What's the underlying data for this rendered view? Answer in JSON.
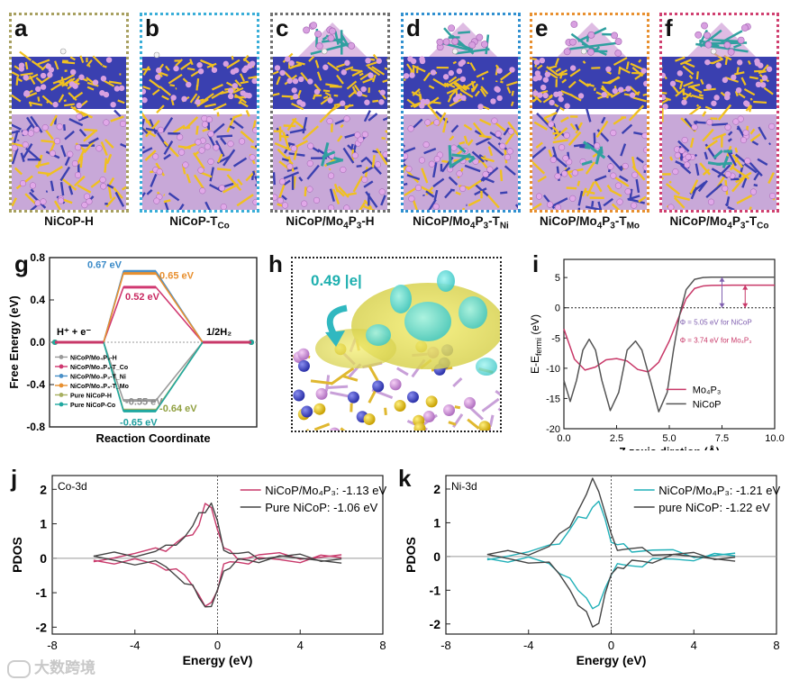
{
  "figure": {
    "panels_top": [
      {
        "letter": "a",
        "caption": "NiCoP-H",
        "frame_color": "#a8a060"
      },
      {
        "letter": "b",
        "caption": "NiCoP-T",
        "sub": "Co",
        "frame_color": "#3aaed8"
      },
      {
        "letter": "c",
        "caption": "NiCoP/Mo",
        "sub1": "4",
        "mid": "P",
        "sub2": "3",
        "tail": "-H",
        "frame_color": "#707070"
      },
      {
        "letter": "d",
        "caption": "NiCoP/Mo",
        "sub1": "4",
        "mid": "P",
        "sub2": "3",
        "tail": "-T",
        "sub3": "Ni",
        "frame_color": "#3090d0"
      },
      {
        "letter": "e",
        "caption": "NiCoP/Mo",
        "sub1": "4",
        "mid": "P",
        "sub2": "3",
        "tail": "-T",
        "sub3": "Mo",
        "frame_color": "#e89030"
      },
      {
        "letter": "f",
        "caption": "NiCoP/Mo",
        "sub1": "4",
        "mid": "P",
        "sub2": "3",
        "tail": "-T",
        "sub3": "Co",
        "frame_color": "#d04070"
      }
    ],
    "panel_g": {
      "letter": "g"
    },
    "panel_h": {
      "letter": "h",
      "charge": "0.49 |e|"
    },
    "panel_i": {
      "letter": "i"
    },
    "panel_j": {
      "letter": "j",
      "tag": "Co-3d"
    },
    "panel_k": {
      "letter": "k",
      "tag": "Ni-3d"
    },
    "watermark": "大数跨境"
  },
  "chart_data": [
    {
      "id": "g",
      "type": "line",
      "title": "",
      "xlabel": "Reaction Coordinate",
      "ylabel": "Free Energy (eV)",
      "ylim": [
        -0.8,
        0.8
      ],
      "yticks": [
        "0.8",
        "0.4",
        "0.0",
        "-0.4",
        "-0.8"
      ],
      "state_labels": {
        "left": "H⁺ + e⁻",
        "right": "1/2H₂"
      },
      "series": [
        {
          "name": "NiCoP/Mo4P3-H",
          "color": "#9a9a9a",
          "values": [
            0,
            -0.55,
            0
          ]
        },
        {
          "name": "NiCoP/Mo4P3-TCo",
          "color": "#d03870",
          "values": [
            0,
            0.52,
            0
          ]
        },
        {
          "name": "NiCoP/Mo4P3-TNi",
          "color": "#4a90c8",
          "values": [
            0,
            0.67,
            0
          ]
        },
        {
          "name": "NiCoP/Mo4P3-TMo",
          "color": "#e89030",
          "values": [
            0,
            0.65,
            0
          ]
        },
        {
          "name": "Pure NiCoP-H",
          "color": "#a8b060",
          "values": [
            0,
            -0.64,
            0
          ]
        },
        {
          "name": "Pure NiCoP-Co",
          "color": "#20a8a0",
          "values": [
            0,
            -0.65,
            0
          ]
        }
      ],
      "annotations": [
        {
          "text": "0.67 eV",
          "color": "#3a8ac8"
        },
        {
          "text": "0.65 eV",
          "color": "#e89030"
        },
        {
          "text": "0.52 eV",
          "color": "#c82860"
        },
        {
          "text": "-0.55 eV",
          "color": "#8a8a8a"
        },
        {
          "text": "-0.64 eV",
          "color": "#90a040"
        },
        {
          "text": "-0.65 eV",
          "color": "#20a0a0"
        }
      ],
      "legend": [
        "NiCoP/Mo₄P₃-H",
        "NiCoP/Mo₄P₃-T_Co",
        "NiCoP/Mo₄P₃-T_Ni",
        "NiCoP/Mo₄P₃-T_Mo",
        "Pure NiCoP-H",
        "Pure NiCoP-Co"
      ]
    },
    {
      "id": "i",
      "type": "line",
      "xlabel": "Z zaxis diretion (Å)",
      "ylabel": "E-E",
      "ylabel_sub": "fermi",
      "ylabel_unit": " (eV)",
      "xlim": [
        0,
        10
      ],
      "ylim": [
        -20,
        8
      ],
      "xticks": [
        "0.0",
        "2.5",
        "5.0",
        "7.5",
        "10.0"
      ],
      "yticks": [
        "5",
        "0",
        "-5",
        "-10",
        "-15",
        "-20"
      ],
      "series": [
        {
          "name": "Mo₄P₃",
          "color": "#c83868",
          "x": [
            0,
            0.5,
            1,
            1.5,
            2,
            2.5,
            3,
            3.5,
            4,
            4.5,
            5,
            5.4,
            5.8,
            6.2,
            6.6,
            7,
            8,
            10
          ],
          "y": [
            -3.5,
            -8.5,
            -10.3,
            -9.8,
            -8.6,
            -8.4,
            -8.8,
            -10.2,
            -10.6,
            -9,
            -5.5,
            -2,
            1.5,
            3.2,
            3.6,
            3.7,
            3.74,
            3.74
          ]
        },
        {
          "name": "NiCoP",
          "color": "#555555",
          "x": [
            0,
            0.3,
            0.6,
            0.9,
            1.2,
            1.5,
            1.8,
            2.2,
            2.6,
            3,
            3.4,
            3.7,
            4.1,
            4.5,
            4.9,
            5.2,
            5.5,
            5.8,
            6.2,
            6.6,
            7,
            8,
            10
          ],
          "y": [
            -12,
            -15.5,
            -12,
            -7,
            -5.2,
            -7,
            -12,
            -17,
            -14,
            -7,
            -5.5,
            -7,
            -12,
            -17.2,
            -14,
            -7,
            -1,
            3,
            4.7,
            5.0,
            5.05,
            5.05,
            5.05
          ]
        }
      ],
      "annotations": [
        {
          "text": "Φ = 5.05 eV for NiCoP",
          "color": "#8060b0"
        },
        {
          "text": "Φ = 3.74 eV for Mo₄P₃",
          "color": "#c83868"
        }
      ],
      "legend": [
        "Mo₄P₃",
        "NiCoP"
      ]
    },
    {
      "id": "j",
      "type": "line",
      "xlabel": "Energy (eV)",
      "ylabel": "PDOS",
      "xlim": [
        -8,
        8
      ],
      "ylim": [
        -2.2,
        2.4
      ],
      "xticks": [
        "-8",
        "-4",
        "0",
        "4",
        "8"
      ],
      "yticks": [
        "2",
        "1",
        "0",
        "-1",
        "-2"
      ],
      "series": [
        {
          "name": "NiCoP/Mo₄P₃: -1.13 eV",
          "color": "#c8386a",
          "x": [
            -6,
            -5,
            -4,
            -3,
            -2.5,
            -2,
            -1.6,
            -1.2,
            -0.9,
            -0.6,
            -0.3,
            0,
            0.3,
            0.6,
            1,
            1.5,
            2,
            3,
            4,
            5,
            6
          ],
          "y": [
            0.02,
            0.05,
            0.1,
            0.18,
            0.28,
            0.45,
            0.55,
            0.8,
            1.0,
            1.55,
            1.35,
            0.9,
            0.3,
            0.15,
            0.08,
            0.05,
            0.06,
            0.04,
            0.05,
            0.03,
            0.02
          ]
        },
        {
          "name": "Pure NiCoP: -1.06 eV",
          "color": "#444444",
          "x": [
            -6,
            -5,
            -4,
            -3,
            -2.5,
            -2,
            -1.6,
            -1.2,
            -0.9,
            -0.6,
            -0.3,
            0,
            0.3,
            0.6,
            1,
            1.5,
            2,
            3,
            4,
            5,
            6
          ],
          "y": [
            0.02,
            0.06,
            0.12,
            0.2,
            0.3,
            0.5,
            0.65,
            0.9,
            1.2,
            1.4,
            1.6,
            1.0,
            0.35,
            0.18,
            0.1,
            0.06,
            0.05,
            0.05,
            0.04,
            0.03,
            0.02
          ]
        }
      ],
      "mirror": true,
      "legend": [
        "NiCoP/Mo₄P₃: -1.13 eV",
        "Pure NiCoP: -1.06 eV"
      ]
    },
    {
      "id": "k",
      "type": "line",
      "xlabel": "Energy (eV)",
      "ylabel": "PDOS",
      "xlim": [
        -8,
        8
      ],
      "ylim": [
        -2.3,
        2.4
      ],
      "xticks": [
        "-8",
        "-4",
        "0",
        "4",
        "8"
      ],
      "yticks": [
        "2",
        "1",
        "0",
        "-1",
        "-2"
      ],
      "series": [
        {
          "name": "NiCoP/Mo₄P₃: -1.21 eV",
          "color": "#20b0b8",
          "x": [
            -6,
            -5,
            -4,
            -3,
            -2.5,
            -2,
            -1.6,
            -1.2,
            -0.9,
            -0.6,
            -0.3,
            0,
            0.3,
            0.6,
            1,
            1.5,
            2,
            3,
            4,
            5,
            6
          ],
          "y": [
            0.02,
            0.05,
            0.1,
            0.22,
            0.45,
            0.8,
            1.1,
            1.25,
            1.5,
            1.6,
            1.0,
            0.5,
            0.35,
            0.3,
            0.25,
            0.2,
            0.15,
            0.08,
            0.05,
            0.03,
            0.02
          ]
        },
        {
          "name": "pure NiCoP: -1.22 eV",
          "color": "#444444",
          "x": [
            -6,
            -5,
            -4,
            -3,
            -2.5,
            -2,
            -1.6,
            -1.2,
            -0.9,
            -0.6,
            -0.3,
            0,
            0.3,
            0.6,
            1,
            1.5,
            2,
            3,
            4,
            5,
            6
          ],
          "y": [
            0.02,
            0.06,
            0.12,
            0.3,
            0.6,
            1.0,
            1.4,
            1.8,
            2.2,
            2.0,
            1.3,
            0.6,
            0.3,
            0.25,
            0.2,
            0.15,
            0.12,
            0.06,
            0.04,
            0.03,
            0.02
          ]
        }
      ],
      "mirror": true,
      "legend": [
        "NiCoP/Mo₄P₃: -1.21 eV",
        "pure NiCoP: -1.22 eV"
      ]
    }
  ]
}
